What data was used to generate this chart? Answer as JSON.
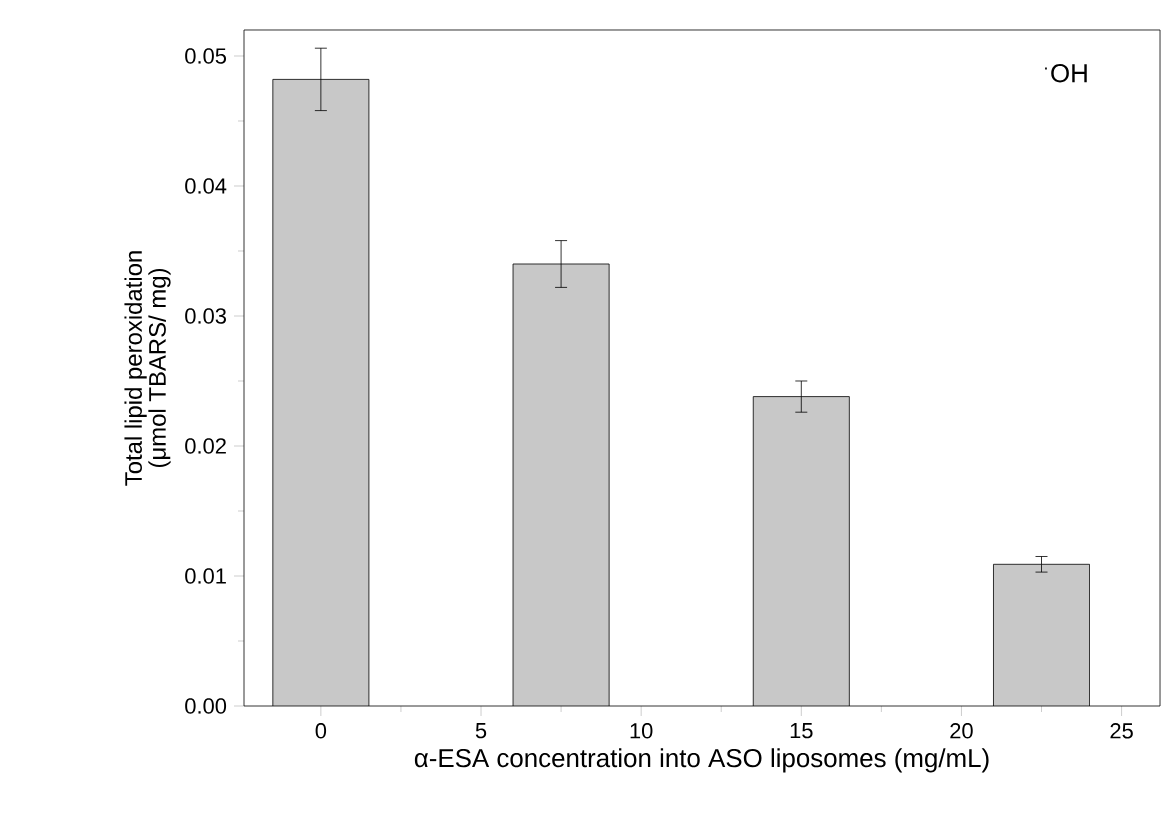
{
  "chart_data": {
    "type": "bar",
    "xlabel": "α-ESA concentration into ASO liposomes (mg/mL)",
    "ylabel": "Total lipid peroxidation (μmol TBARS/ mg)",
    "annotations": [
      "$^{·}$OH"
    ],
    "x": [
      0,
      7.5,
      15,
      22.5
    ],
    "values": [
      0.0482,
      0.034,
      0.0238,
      0.0109
    ],
    "errors": [
      0.0024,
      0.0018,
      0.0012,
      0.0006
    ],
    "color": "#c8c8c8",
    "xlim": [
      -2.4,
      26.2
    ],
    "xticks": [
      0,
      5,
      10,
      15,
      20,
      25
    ],
    "ylim": [
      0,
      0.052
    ],
    "yticks": [
      {
        "value": 0,
        "label": "0.00"
      },
      0.01,
      0.02,
      0.03,
      0.04,
      0.05
    ],
    "grid": false
  }
}
